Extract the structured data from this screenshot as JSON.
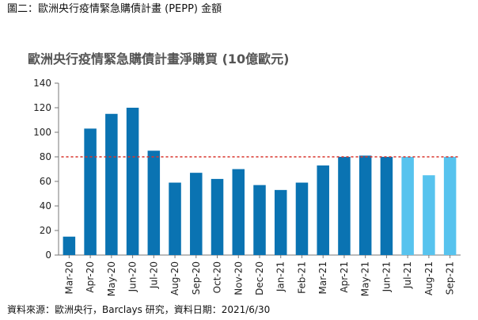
{
  "figure": {
    "caption": "圖二：歐洲央行疫情緊急購債計畫 (PEPP) 金額",
    "source": "資料來源：歐洲央行，Barclays 研究，資料日期：2021/6/30"
  },
  "colors": {
    "actual_bar": "#0a73b2",
    "forecast_bar": "#57c3ee",
    "reference_line": "#d9352d",
    "axis": "#777777",
    "text": "#222222",
    "title_text": "#555555"
  },
  "chart_data": {
    "type": "bar",
    "title": "歐洲央行疫情緊急購債計畫淨購買 (10億歐元)",
    "xlabel": "",
    "ylabel": "",
    "categories": [
      "Mar-20",
      "Apr-20",
      "May-20",
      "Jun-20",
      "Jul-20",
      "Aug-20",
      "Sep-20",
      "Oct-20",
      "Nov-20",
      "Dec-20",
      "Jan-21",
      "Feb-21",
      "Mar-21",
      "Apr-21",
      "May-21",
      "Jun-21",
      "Jul-21",
      "Aug-21",
      "Sep-21"
    ],
    "values": [
      15,
      103,
      115,
      120,
      85,
      59,
      67,
      62,
      70,
      57,
      53,
      59,
      73,
      80,
      81,
      80,
      80,
      65,
      80
    ],
    "bar_groups": [
      "actual",
      "actual",
      "actual",
      "actual",
      "actual",
      "actual",
      "actual",
      "actual",
      "actual",
      "actual",
      "actual",
      "actual",
      "actual",
      "actual",
      "actual",
      "actual",
      "forecast",
      "forecast",
      "forecast"
    ],
    "ylim": [
      0,
      140
    ],
    "yticks": [
      0,
      20,
      40,
      60,
      80,
      100,
      120,
      140
    ],
    "reference_line": {
      "value": 80,
      "style": "dotted"
    },
    "grid": false,
    "legend": "none"
  }
}
